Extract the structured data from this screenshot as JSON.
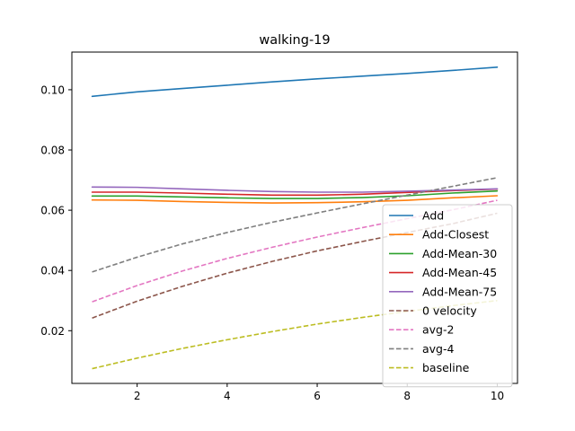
{
  "chart_data": {
    "type": "line",
    "title": "walking-19",
    "xlabel": "",
    "ylabel": "",
    "xlim": [
      0.55,
      10.45
    ],
    "ylim": [
      0.0025,
      0.1125
    ],
    "xticks": [
      2,
      4,
      6,
      8,
      10
    ],
    "xtick_labels": [
      "2",
      "4",
      "6",
      "8",
      "10"
    ],
    "yticks": [
      0.02,
      0.04,
      0.06,
      0.08,
      0.1
    ],
    "ytick_labels": [
      "0.02",
      "0.04",
      "0.06",
      "0.08",
      "0.10"
    ],
    "grid": false,
    "legend_position": "lower-right",
    "x": [
      1,
      2,
      3,
      4,
      5,
      6,
      7,
      8,
      9,
      10
    ],
    "series": [
      {
        "name": "Add",
        "color": "#1f77b4",
        "dash": "solid",
        "values": [
          0.0978,
          0.0993,
          0.1004,
          0.1015,
          0.1026,
          0.1036,
          0.1045,
          0.1054,
          0.1064,
          0.1075
        ]
      },
      {
        "name": "Add-Closest",
        "color": "#ff7f0e",
        "dash": "solid",
        "values": [
          0.0634,
          0.0633,
          0.0629,
          0.0626,
          0.0624,
          0.0625,
          0.0628,
          0.0633,
          0.0641,
          0.0648
        ]
      },
      {
        "name": "Add-Mean-30",
        "color": "#2ca02c",
        "dash": "solid",
        "values": [
          0.0647,
          0.0647,
          0.0644,
          0.0641,
          0.0639,
          0.0639,
          0.0642,
          0.0648,
          0.0657,
          0.0664
        ]
      },
      {
        "name": "Add-Mean-45",
        "color": "#d62728",
        "dash": "solid",
        "values": [
          0.066,
          0.066,
          0.0657,
          0.0653,
          0.065,
          0.065,
          0.0653,
          0.0659,
          0.0665,
          0.067
        ]
      },
      {
        "name": "Add-Mean-75",
        "color": "#9467bd",
        "dash": "solid",
        "values": [
          0.0677,
          0.0676,
          0.0671,
          0.0666,
          0.0662,
          0.066,
          0.066,
          0.0663,
          0.0667,
          0.0671
        ]
      },
      {
        "name": "0 velocity",
        "color": "#8c564b",
        "dash": "dashed",
        "values": [
          0.0242,
          0.0298,
          0.0347,
          0.0391,
          0.043,
          0.0465,
          0.0496,
          0.0526,
          0.0555,
          0.059
        ]
      },
      {
        "name": "avg-2",
        "color": "#e377c2",
        "dash": "dashed",
        "values": [
          0.0296,
          0.035,
          0.0398,
          0.044,
          0.0477,
          0.0511,
          0.0542,
          0.0572,
          0.0601,
          0.0633
        ]
      },
      {
        "name": "avg-4",
        "color": "#7f7f7f",
        "dash": "dashed",
        "values": [
          0.0395,
          0.0444,
          0.0488,
          0.0526,
          0.056,
          0.0591,
          0.0621,
          0.065,
          0.0679,
          0.0708
        ]
      },
      {
        "name": "baseline",
        "color": "#bcbd22",
        "dash": "dashed",
        "values": [
          0.0074,
          0.0109,
          0.0141,
          0.017,
          0.0197,
          0.0222,
          0.0244,
          0.0264,
          0.0283,
          0.03
        ]
      }
    ]
  }
}
